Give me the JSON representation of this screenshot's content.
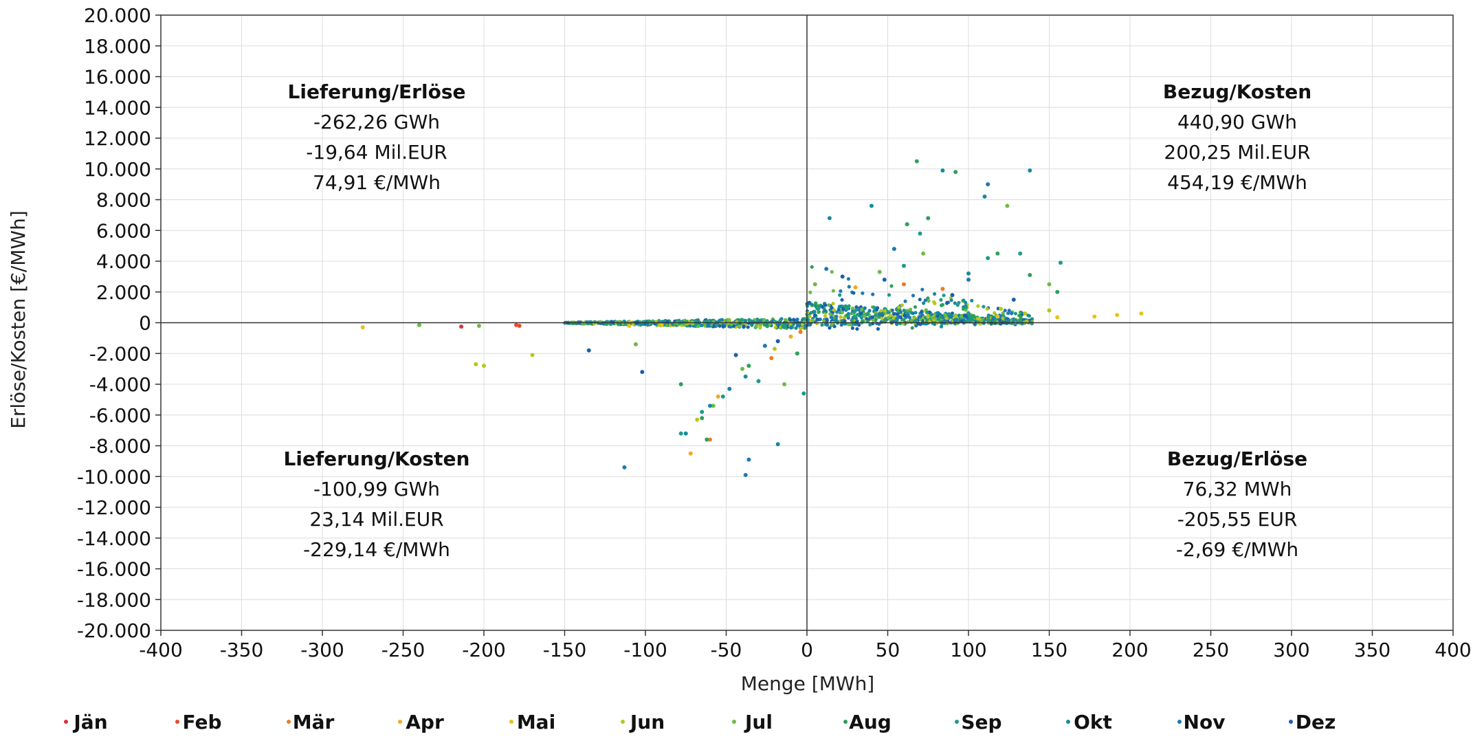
{
  "chart_data": {
    "type": "scatter",
    "title": "",
    "xlabel": "Menge [MWh]",
    "ylabel": "Erlöse/Kosten [€/MWh]",
    "xlim": [
      -400,
      400
    ],
    "ylim": [
      -20000,
      20000
    ],
    "x_ticks": [
      -400,
      -350,
      -300,
      -250,
      -200,
      -150,
      -100,
      -50,
      0,
      50,
      100,
      150,
      200,
      250,
      300,
      350,
      400
    ],
    "x_tick_labels": [
      "-400",
      "-350",
      "-300",
      "-250",
      "-200",
      "-150",
      "-100",
      "-50",
      "0",
      "50",
      "100",
      "150",
      "200",
      "250",
      "300",
      "350",
      "400"
    ],
    "y_ticks": [
      20000,
      18000,
      16000,
      14000,
      12000,
      10000,
      8000,
      6000,
      4000,
      2000,
      0,
      -2000,
      -4000,
      -6000,
      -8000,
      -10000,
      -12000,
      -14000,
      -16000,
      -18000,
      -20000
    ],
    "y_tick_labels": [
      "20.000",
      "18.000",
      "16.000",
      "14.000",
      "12.000",
      "10.000",
      "8.000",
      "6.000",
      "4.000",
      "2.000",
      "0",
      "-2.000",
      "-4.000",
      "-6.000",
      "-8.000",
      "-10.000",
      "-12.000",
      "-14.000",
      "-16.000",
      "-18.000",
      "-20.000"
    ],
    "grid": true,
    "legend_position": "bottom",
    "series": [
      {
        "name": "Jän",
        "color": "#e0303a",
        "points": [
          [
            -214,
            -250
          ]
        ]
      },
      {
        "name": "Feb",
        "color": "#e84a2c",
        "points": [
          [
            -178,
            -200
          ],
          [
            -180,
            -150
          ]
        ]
      },
      {
        "name": "Mär",
        "color": "#f07a22",
        "points": [
          [
            -60,
            -7600
          ],
          [
            -22,
            -2300
          ],
          [
            -4,
            -600
          ],
          [
            60,
            2500
          ],
          [
            84,
            2200
          ]
        ]
      },
      {
        "name": "Apr",
        "color": "#f5a623",
        "points": [
          [
            -72,
            -8500
          ],
          [
            -55,
            -4800
          ],
          [
            -10,
            -900
          ],
          [
            30,
            2300
          ]
        ]
      },
      {
        "name": "Mai",
        "color": "#e8c21a",
        "points": [
          [
            -275,
            -300
          ],
          [
            -110,
            -200
          ],
          [
            -90,
            -150
          ],
          [
            118,
            400
          ],
          [
            155,
            350
          ],
          [
            178,
            400
          ],
          [
            192,
            500
          ],
          [
            207,
            600
          ]
        ]
      },
      {
        "name": "Jun",
        "color": "#b7c61d",
        "points": [
          [
            -205,
            -2700
          ],
          [
            -200,
            -2800
          ],
          [
            -170,
            -2100
          ],
          [
            -68,
            -6300
          ],
          [
            -20,
            -1700
          ],
          [
            120,
            900
          ],
          [
            135,
            600
          ],
          [
            150,
            800
          ]
        ]
      },
      {
        "name": "Jul",
        "color": "#6dba45",
        "points": [
          [
            -240,
            -150
          ],
          [
            -203,
            -200
          ],
          [
            -106,
            -1400
          ],
          [
            -58,
            -5400
          ],
          [
            -40,
            -3000
          ],
          [
            -14,
            -4000
          ],
          [
            5,
            2500
          ],
          [
            45,
            3300
          ],
          [
            72,
            4500
          ],
          [
            124,
            7600
          ],
          [
            150,
            2500
          ]
        ]
      },
      {
        "name": "Aug",
        "color": "#2ca05a",
        "points": [
          [
            -62,
            -7600
          ],
          [
            -65,
            -6200
          ],
          [
            -78,
            -4000
          ],
          [
            -36,
            -2800
          ],
          [
            -6,
            -2000
          ],
          [
            68,
            10500
          ],
          [
            62,
            6400
          ],
          [
            75,
            6800
          ],
          [
            92,
            9800
          ],
          [
            118,
            4500
          ],
          [
            138,
            3100
          ],
          [
            155,
            2000
          ]
        ]
      },
      {
        "name": "Sep",
        "color": "#1e9a8a",
        "points": [
          [
            -78,
            -7200
          ],
          [
            -65,
            -5800
          ],
          [
            -52,
            -4800
          ],
          [
            -30,
            -3800
          ],
          [
            -2,
            -4600
          ],
          [
            60,
            3700
          ],
          [
            70,
            5800
          ],
          [
            112,
            4200
          ],
          [
            132,
            4500
          ],
          [
            157,
            3900
          ]
        ]
      },
      {
        "name": "Okt",
        "color": "#168aa0",
        "points": [
          [
            -75,
            -7200
          ],
          [
            -60,
            -5400
          ],
          [
            -38,
            -3500
          ],
          [
            -18,
            -7900
          ],
          [
            14,
            6800
          ],
          [
            40,
            7600
          ],
          [
            84,
            9900
          ],
          [
            110,
            8200
          ],
          [
            138,
            9900
          ],
          [
            100,
            3200
          ]
        ]
      },
      {
        "name": "Nov",
        "color": "#1f78b4",
        "points": [
          [
            -113,
            -9400
          ],
          [
            -38,
            -9900
          ],
          [
            -36,
            -8900
          ],
          [
            -48,
            -4300
          ],
          [
            -26,
            -1500
          ],
          [
            12,
            3500
          ],
          [
            54,
            4800
          ],
          [
            112,
            9000
          ],
          [
            100,
            2800
          ]
        ]
      },
      {
        "name": "Dez",
        "color": "#1a5fa8",
        "points": [
          [
            -135,
            -1800
          ],
          [
            -102,
            -3200
          ],
          [
            -44,
            -2100
          ],
          [
            -18,
            -1200
          ],
          [
            22,
            3000
          ],
          [
            48,
            2800
          ],
          [
            90,
            1800
          ],
          [
            128,
            1500
          ]
        ]
      }
    ],
    "annotations": [
      {
        "quadrant": "top-left",
        "title": "Lieferung/Erlöse",
        "lines": [
          "-262,26 GWh",
          "-19,64 Mil.EUR",
          "74,91 €/MWh"
        ]
      },
      {
        "quadrant": "top-right",
        "title": "Bezug/Kosten",
        "lines": [
          "440,90 GWh",
          "200,25 Mil.EUR",
          "454,19 €/MWh"
        ]
      },
      {
        "quadrant": "bottom-left",
        "title": "Lieferung/Kosten",
        "lines": [
          "-100,99 GWh",
          "23,14 Mil.EUR",
          "-229,14 €/MWh"
        ]
      },
      {
        "quadrant": "bottom-right",
        "title": "Bezug/Erlöse",
        "lines": [
          "76,32 MWh",
          "-205,55 EUR",
          "-2,69 €/MWh"
        ]
      }
    ]
  }
}
